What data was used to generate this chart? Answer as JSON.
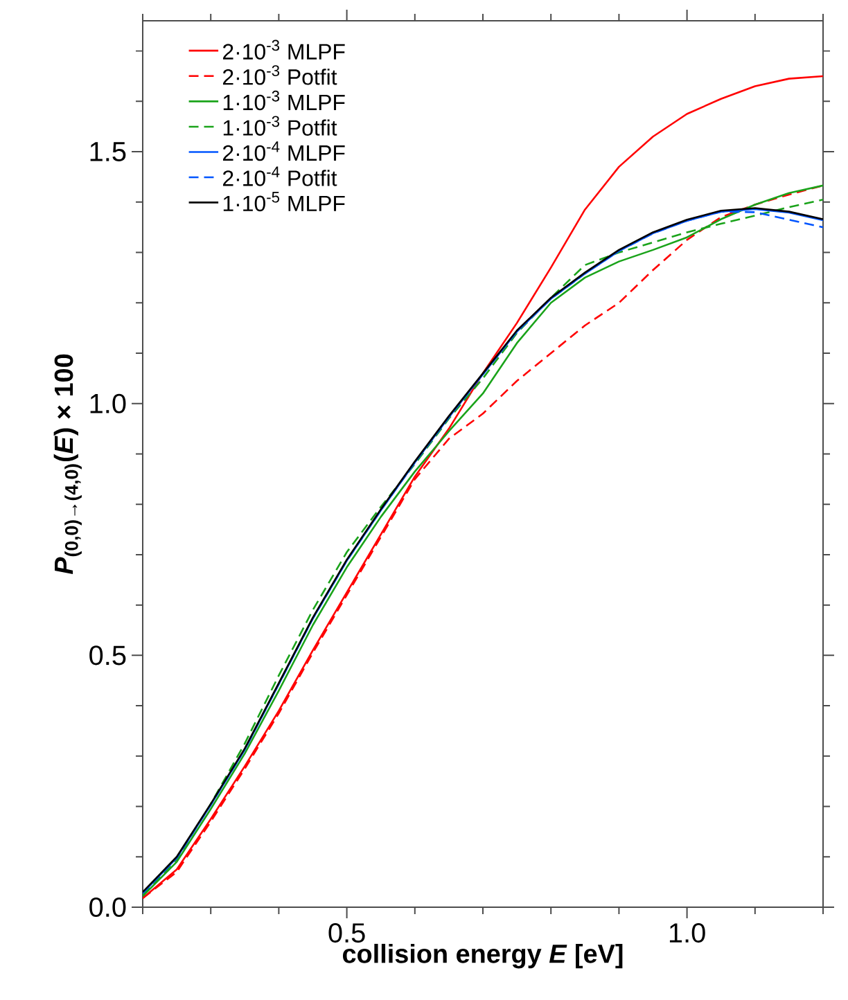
{
  "chart_data": {
    "type": "line",
    "xlabel": "collision energy *E* [eV]",
    "ylabel": "*P*$_{(0,0)→(4,0)}$(*E*) × 100",
    "x": [
      0.2,
      0.25,
      0.3,
      0.35,
      0.4,
      0.45,
      0.5,
      0.55,
      0.6,
      0.65,
      0.7,
      0.75,
      0.8,
      0.85,
      0.9,
      0.95,
      1.0,
      1.05,
      1.1,
      1.15,
      1.2
    ],
    "series": [
      {
        "name": "2·10$^{-3}$ MLPF",
        "color": "#ff0000",
        "line_style": "solid",
        "values": [
          0.018,
          0.075,
          0.175,
          0.28,
          0.39,
          0.51,
          0.625,
          0.74,
          0.855,
          0.95,
          1.06,
          1.16,
          1.27,
          1.385,
          1.47,
          1.53,
          1.575,
          1.605,
          1.63,
          1.645,
          1.65
        ]
      },
      {
        "name": "2·10$^{-3}$ Potfit",
        "color": "#ff0000",
        "line_style": "dashed",
        "values": [
          0.018,
          0.07,
          0.17,
          0.275,
          0.385,
          0.505,
          0.62,
          0.735,
          0.85,
          0.93,
          0.98,
          1.045,
          1.1,
          1.155,
          1.2,
          1.265,
          1.325,
          1.37,
          1.395,
          1.415,
          1.433
        ]
      },
      {
        "name": "1·10$^{-3}$ MLPF",
        "color": "#1aa31a",
        "line_style": "solid",
        "values": [
          0.022,
          0.09,
          0.195,
          0.305,
          0.43,
          0.56,
          0.675,
          0.775,
          0.865,
          0.945,
          1.02,
          1.12,
          1.2,
          1.25,
          1.282,
          1.305,
          1.33,
          1.366,
          1.395,
          1.418,
          1.433
        ]
      },
      {
        "name": "1·10$^{-3}$ Potfit",
        "color": "#1aa31a",
        "line_style": "dashed",
        "values": [
          0.025,
          0.095,
          0.205,
          0.325,
          0.46,
          0.59,
          0.705,
          0.795,
          0.88,
          0.97,
          1.05,
          1.14,
          1.21,
          1.275,
          1.3,
          1.32,
          1.34,
          1.357,
          1.373,
          1.39,
          1.405
        ]
      },
      {
        "name": "2·10$^{-4}$ MLPF",
        "color": "#0055ff",
        "line_style": "solid",
        "values": [
          0.028,
          0.098,
          0.203,
          0.313,
          0.443,
          0.573,
          0.688,
          0.788,
          0.883,
          0.973,
          1.058,
          1.143,
          1.208,
          1.258,
          1.303,
          1.338,
          1.363,
          1.381,
          1.386,
          1.379,
          1.364
        ]
      },
      {
        "name": "2·10$^{-4}$ Potfit",
        "color": "#0055ff",
        "line_style": "dashed",
        "values": [
          0.028,
          0.098,
          0.203,
          0.313,
          0.443,
          0.573,
          0.688,
          0.788,
          0.883,
          0.973,
          1.058,
          1.143,
          1.208,
          1.258,
          1.303,
          1.338,
          1.363,
          1.381,
          1.38,
          1.365,
          1.35
        ]
      },
      {
        "name": "1·10$^{-5}$ MLPF",
        "color": "#000000",
        "line_style": "solid",
        "values": [
          0.03,
          0.1,
          0.205,
          0.315,
          0.445,
          0.575,
          0.69,
          0.79,
          0.885,
          0.975,
          1.06,
          1.145,
          1.21,
          1.26,
          1.305,
          1.34,
          1.365,
          1.383,
          1.388,
          1.381,
          1.366
        ]
      }
    ],
    "xlim": [
      0.2,
      1.2
    ],
    "xticks": [
      {
        "value": 0.2,
        "label": null
      },
      {
        "value": 0.3,
        "label": null
      },
      {
        "value": 0.4,
        "label": null
      },
      0.5,
      {
        "value": 0.6,
        "label": null
      },
      {
        "value": 0.7,
        "label": null
      },
      {
        "value": 0.8,
        "label": null
      },
      {
        "value": 0.9,
        "label": null
      },
      {
        "value": 1.0,
        "label": "1.0"
      },
      {
        "value": 1.1,
        "label": null
      },
      {
        "value": 1.2,
        "label": null
      }
    ],
    "ylim": [
      0,
      1.76
    ],
    "yticks": [
      {
        "value": 0,
        "label": "0.0"
      },
      {
        "value": 0.1,
        "label": null
      },
      {
        "value": 0.2,
        "label": null
      },
      {
        "value": 0.3,
        "label": null
      },
      {
        "value": 0.4,
        "label": null
      },
      0.5,
      {
        "value": 0.6,
        "label": null
      },
      {
        "value": 0.7,
        "label": null
      },
      {
        "value": 0.8,
        "label": null
      },
      {
        "value": 0.9,
        "label": null
      },
      {
        "value": 1.0,
        "label": "1.0"
      },
      {
        "value": 1.1,
        "label": null
      },
      {
        "value": 1.2,
        "label": null
      },
      {
        "value": 1.3,
        "label": null
      },
      {
        "value": 1.4,
        "label": null
      },
      1.5,
      {
        "value": 1.6,
        "label": null
      },
      {
        "value": 1.7,
        "label": null
      }
    ],
    "legend": "top left",
    "grid": false,
    "marker": "none"
  }
}
